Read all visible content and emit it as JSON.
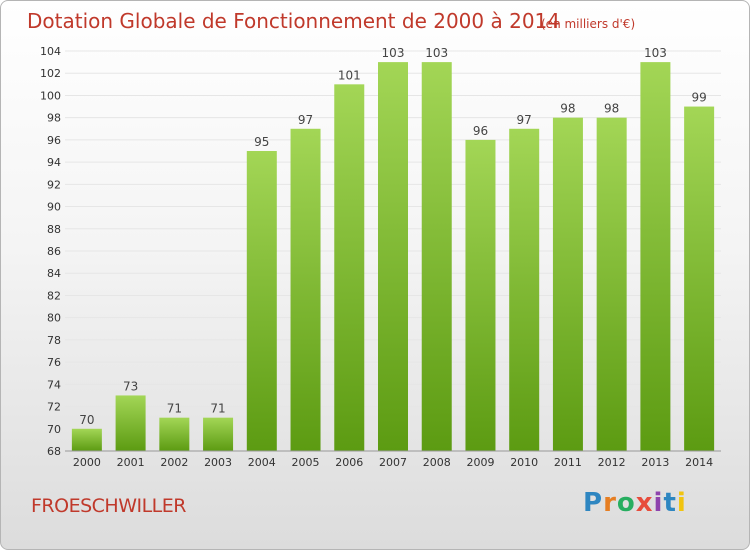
{
  "chart_data": {
    "type": "bar",
    "title": "Dotation Globale de Fonctionnement de 2000 à 2014",
    "subtitle": "(en milliers d'€)",
    "categories": [
      "2000",
      "2001",
      "2002",
      "2003",
      "2004",
      "2005",
      "2006",
      "2007",
      "2008",
      "2009",
      "2010",
      "2011",
      "2012",
      "2013",
      "2014"
    ],
    "values": [
      70,
      73,
      71,
      71,
      95,
      97,
      101,
      103,
      103,
      96,
      97,
      98,
      98,
      103,
      99
    ],
    "ylim": [
      68,
      104
    ],
    "yticks": [
      68,
      70,
      72,
      74,
      76,
      78,
      80,
      82,
      84,
      86,
      88,
      90,
      92,
      94,
      96,
      98,
      100,
      102,
      104
    ],
    "grid": true,
    "bar_color_top": "#a3d656",
    "bar_color_bottom": "#5c9b12",
    "title_color": "#c0392b"
  },
  "footer": {
    "commune": "FROESCHWILLER"
  },
  "logo": {
    "text": "Proxiti",
    "letters": [
      {
        "ch": "P",
        "color": "#2e86c1"
      },
      {
        "ch": "r",
        "color": "#e67e22"
      },
      {
        "ch": "o",
        "color": "#27ae60"
      },
      {
        "ch": "x",
        "color": "#e74c3c"
      },
      {
        "ch": "i",
        "color": "#8e44ad"
      },
      {
        "ch": "t",
        "color": "#2e86c1"
      },
      {
        "ch": "i",
        "color": "#f1c40f"
      }
    ]
  }
}
